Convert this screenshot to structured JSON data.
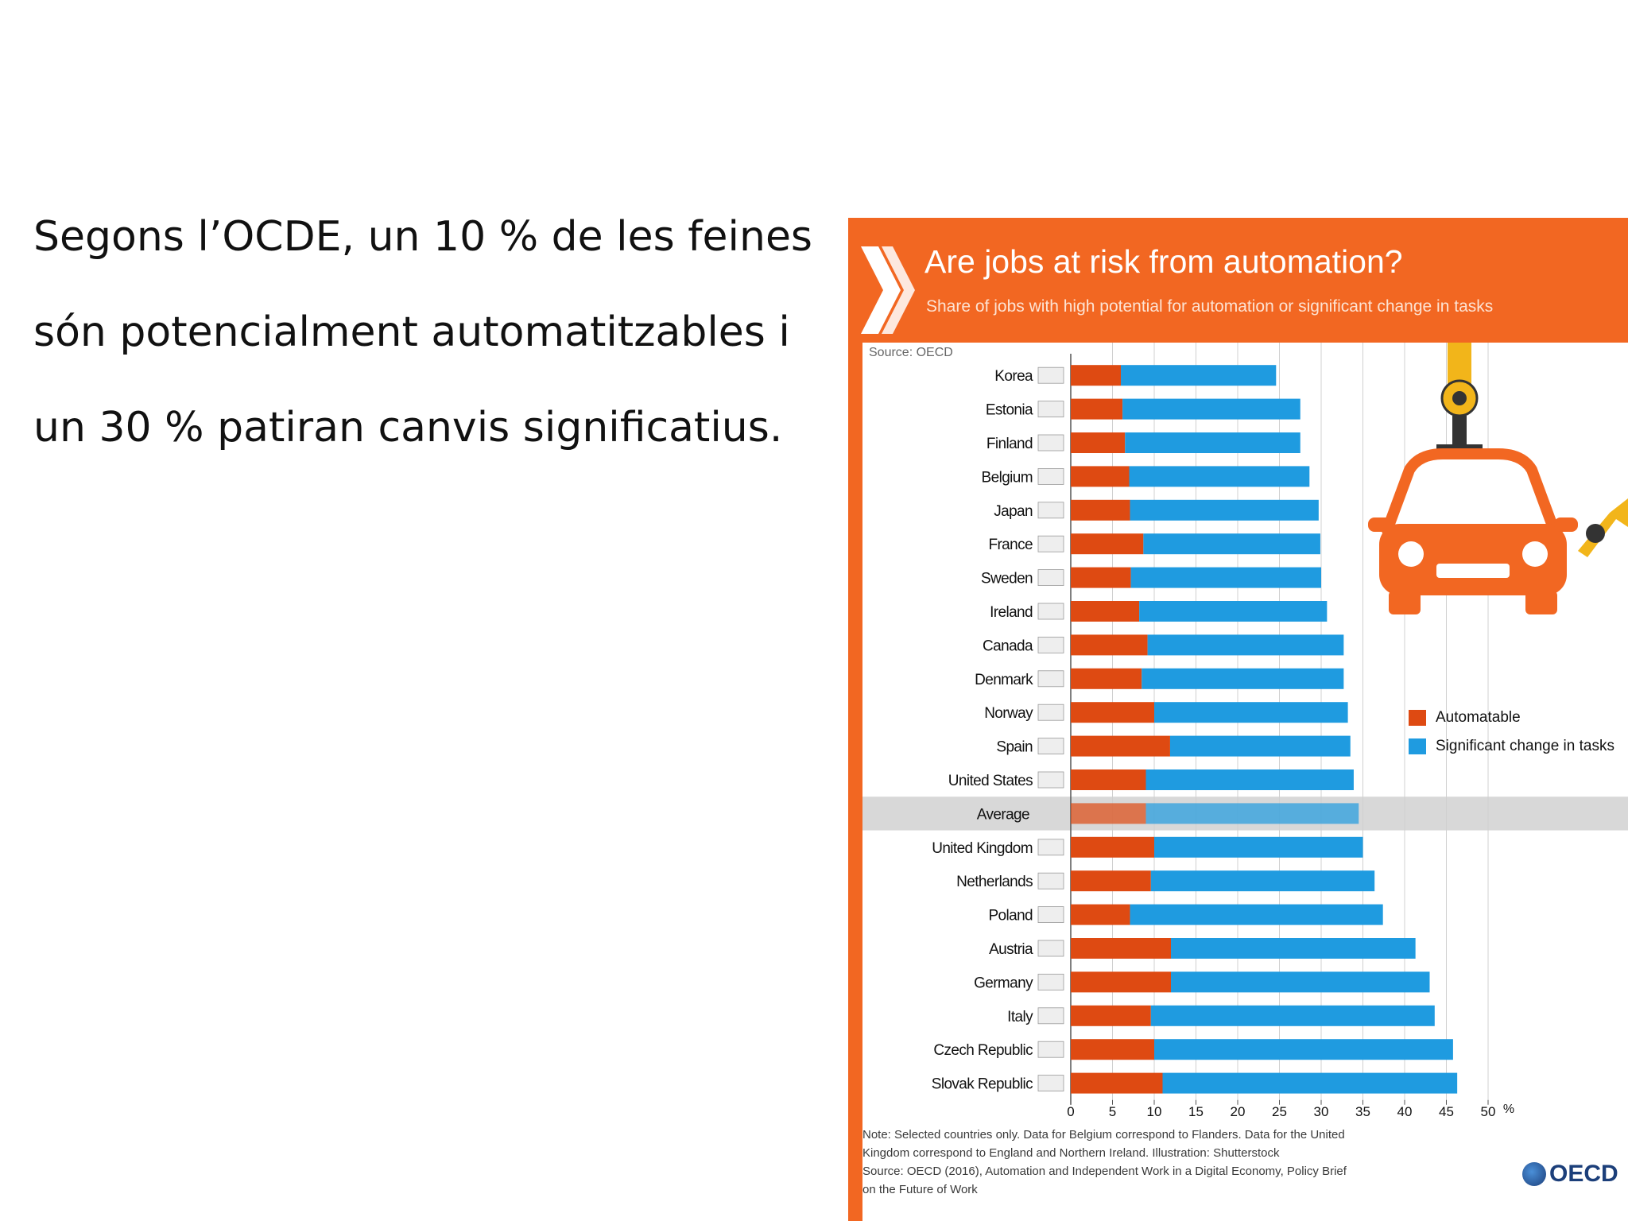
{
  "slide": {
    "lines": [
      "Segons l’OCDE, un 10 % de les feines",
      "són potencialment automatitzables i",
      "un 30 % patiran canvis significatius."
    ]
  },
  "infographic": {
    "note_lines": [
      "Note: Selected countries only. Data for Belgium correspond to Flanders. Data for the United",
      "Kingdom correspond to England and Northern Ireland. Illustration: Shutterstock",
      "Source: OECD (2016), Automation and Independent Work in a Digital Economy, Policy Brief",
      "on the Future of Work"
    ],
    "logo_text": "OECD",
    "colors": {
      "background": "#f26722",
      "automatable": "#de4a12",
      "significant": "#1f9be0",
      "average_band": "#d8d8d8"
    },
    "illustration": "robot-car-icon"
  },
  "chart_data": {
    "type": "bar",
    "orientation": "horizontal",
    "stacked": true,
    "title": "Are jobs at risk from automation?",
    "subtitle": "Share of jobs with high potential for automation or significant change in tasks",
    "source_label": "Source: OECD",
    "x_unit": "%",
    "xlim": [
      0,
      50
    ],
    "xticks": [
      0,
      5,
      10,
      15,
      20,
      25,
      30,
      35,
      40,
      45,
      50
    ],
    "grid": true,
    "legend_position": "right",
    "highlight_category": "Average",
    "categories": [
      "Korea",
      "Estonia",
      "Finland",
      "Belgium",
      "Japan",
      "France",
      "Sweden",
      "Ireland",
      "Canada",
      "Denmark",
      "Norway",
      "Spain",
      "United States",
      "Average",
      "United Kingdom",
      "Netherlands",
      "Poland",
      "Austria",
      "Germany",
      "Italy",
      "Czech Republic",
      "Slovak Republic"
    ],
    "series": [
      {
        "name": "Automatable",
        "color": "#de4a12",
        "values": [
          6,
          6.2,
          6.5,
          7,
          7.1,
          8.7,
          7.2,
          8.2,
          9.2,
          8.5,
          10,
          11.9,
          9,
          9,
          10,
          9.6,
          7.1,
          12,
          12,
          9.6,
          10,
          11
        ]
      },
      {
        "name": "Significant change in tasks",
        "color": "#1f9be0",
        "values": [
          18.6,
          21.3,
          21,
          21.6,
          22.6,
          21.2,
          22.8,
          22.5,
          23.5,
          24.2,
          23.2,
          21.6,
          24.9,
          25.5,
          25,
          26.8,
          30.3,
          29.3,
          31,
          34,
          35.8,
          35.3
        ]
      }
    ]
  }
}
